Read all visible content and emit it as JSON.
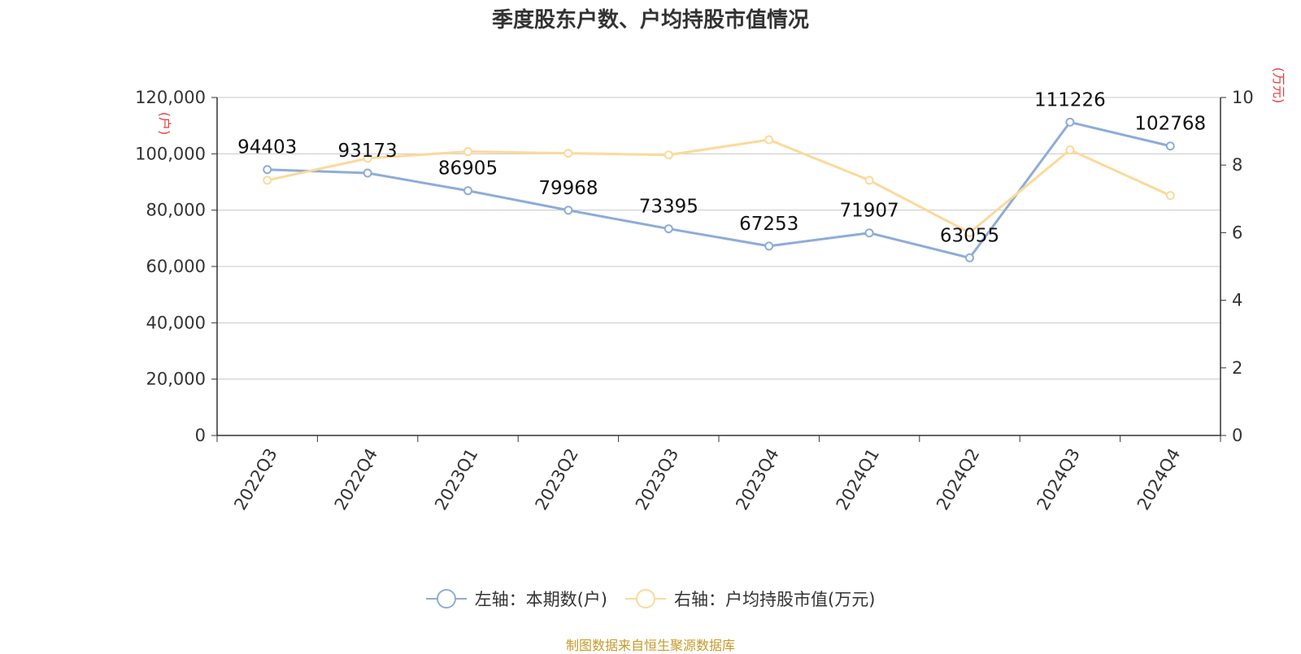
{
  "chart_data": {
    "type": "line",
    "title": "季度股东户数、户均持股市值情况",
    "categories": [
      "2022Q3",
      "2022Q4",
      "2023Q1",
      "2023Q2",
      "2023Q3",
      "2023Q4",
      "2024Q1",
      "2024Q2",
      "2024Q3",
      "2024Q4"
    ],
    "series": [
      {
        "name": "左轴：本期数(户)",
        "axis": "left",
        "color": "#8eacd8",
        "values": [
          94403,
          93173,
          86905,
          79968,
          73395,
          67253,
          71907,
          63055,
          111226,
          102768
        ],
        "labels": [
          "94403",
          "93173",
          "86905",
          "79968",
          "73395",
          "67253",
          "71907",
          "63055",
          "111226",
          "102768"
        ]
      },
      {
        "name": "右轴：户均持股市值(万元)",
        "axis": "right",
        "color": "#fcd99a",
        "values": [
          7.55,
          8.2,
          8.4,
          8.35,
          8.3,
          8.75,
          7.55,
          6.0,
          8.45,
          7.1
        ]
      }
    ],
    "left_axis": {
      "unit": "(户)",
      "min": 0,
      "max": 120000,
      "ticks": [
        "0",
        "20,000",
        "40,000",
        "60,000",
        "80,000",
        "100,000",
        "120,000"
      ]
    },
    "right_axis": {
      "unit": "(万元)",
      "min": 0,
      "max": 10,
      "ticks": [
        "0",
        "2",
        "4",
        "6",
        "8",
        "10"
      ]
    },
    "grid": true,
    "legend_position": "bottom",
    "source": "制图数据来自恒生聚源数据库"
  },
  "legend": {
    "left_label": "左轴：本期数(户)",
    "right_label": "右轴：户均持股市值(万元)",
    "left_color": "#8eacd8",
    "right_color": "#fcd99a"
  }
}
